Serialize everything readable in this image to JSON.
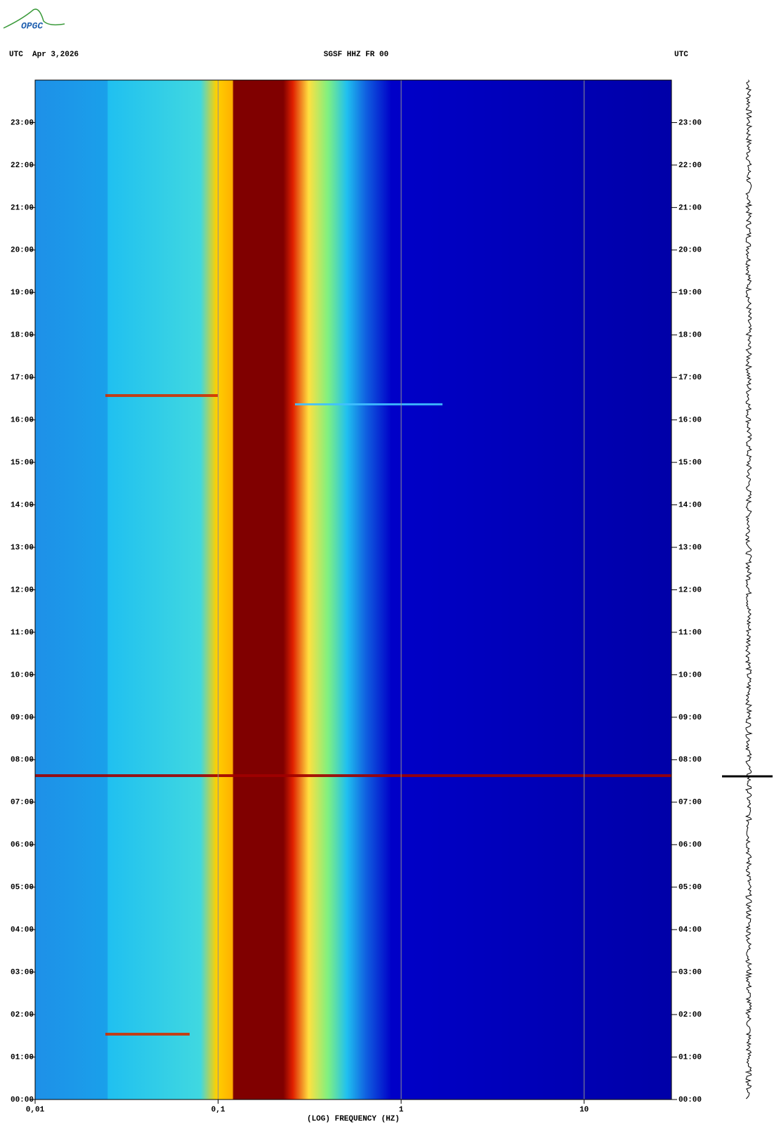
{
  "chart_data": {
    "type": "spectrogram",
    "title": "SGSF HHZ FR 00",
    "left_header": "UTC  Apr 3,2026",
    "right_header": "UTC",
    "xlabel": "(LOG) FREQUENCY (HZ)",
    "logo": "OPGC",
    "xscale": "log",
    "xlim": [
      0.01,
      30
    ],
    "xticks": [
      {
        "value": 0.01,
        "label": "0,01"
      },
      {
        "value": 0.1,
        "label": "0,1"
      },
      1,
      10
    ],
    "ylim": [
      0,
      24
    ],
    "yticks": [
      {
        "value": 0,
        "label": "00:00"
      },
      {
        "value": 1,
        "label": "01:00"
      },
      {
        "value": 2,
        "label": "02:00"
      },
      {
        "value": 3,
        "label": "03:00"
      },
      {
        "value": 4,
        "label": "04:00"
      },
      {
        "value": 5,
        "label": "05:00"
      },
      {
        "value": 6,
        "label": "06:00"
      },
      {
        "value": 7,
        "label": "07:00"
      },
      {
        "value": 8,
        "label": "08:00"
      },
      {
        "value": 9,
        "label": "09:00"
      },
      {
        "value": 10,
        "label": "10:00"
      },
      {
        "value": 11,
        "label": "11:00"
      },
      {
        "value": 12,
        "label": "12:00"
      },
      {
        "value": 13,
        "label": "13:00"
      },
      {
        "value": 14,
        "label": "14:00"
      },
      {
        "value": 15,
        "label": "15:00"
      },
      {
        "value": 16,
        "label": "16:00"
      },
      {
        "value": 17,
        "label": "17:00"
      },
      {
        "value": 18,
        "label": "18:00"
      },
      {
        "value": 19,
        "label": "19:00"
      },
      {
        "value": 20,
        "label": "20:00"
      },
      {
        "value": 21,
        "label": "21:00"
      },
      {
        "value": 22,
        "label": "22:00"
      },
      {
        "value": 23,
        "label": "23:00"
      }
    ],
    "grid": true
  }
}
